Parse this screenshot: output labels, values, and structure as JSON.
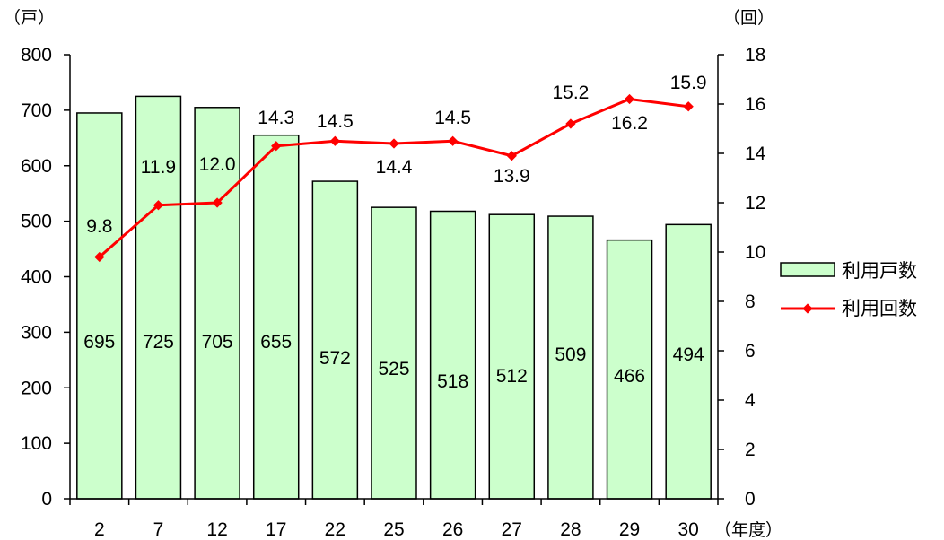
{
  "chart_data": {
    "type": "bar+line",
    "categories": [
      "2",
      "7",
      "12",
      "17",
      "22",
      "25",
      "26",
      "27",
      "28",
      "29",
      "30"
    ],
    "x_unit": "（年度）",
    "series": [
      {
        "name": "利用戸数",
        "type": "bar",
        "axis": "left",
        "values": [
          695,
          725,
          705,
          655,
          572,
          525,
          518,
          512,
          509,
          466,
          494
        ],
        "color": "#ccffcc",
        "labels": [
          "695",
          "725",
          "705",
          "655",
          "572",
          "525",
          "518",
          "512",
          "509",
          "466",
          "494"
        ]
      },
      {
        "name": "利用回数",
        "type": "line",
        "axis": "right",
        "values": [
          9.8,
          11.9,
          12.0,
          14.3,
          14.5,
          14.4,
          14.5,
          13.9,
          15.2,
          16.2,
          15.9
        ],
        "color": "#ff0000",
        "labels": [
          "9.8",
          "11.9",
          "12.0",
          "14.3",
          "14.5",
          "14.4",
          "14.5",
          "13.9",
          "15.2",
          "16.2",
          "15.9"
        ]
      }
    ],
    "y_left": {
      "unit": "（戸）",
      "range": [
        0,
        800
      ],
      "ticks": [
        "0",
        "100",
        "200",
        "300",
        "400",
        "500",
        "600",
        "700",
        "800"
      ]
    },
    "y_right": {
      "unit": "（回）",
      "range": [
        0,
        18
      ],
      "ticks": [
        "0",
        "2",
        "4",
        "6",
        "8",
        "10",
        "12",
        "14",
        "16",
        "18"
      ]
    },
    "grid": false,
    "legend_position": "right"
  }
}
